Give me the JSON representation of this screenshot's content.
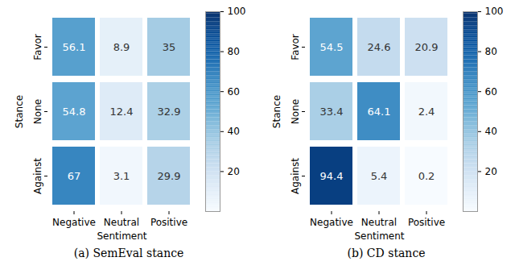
{
  "chart_data": [
    {
      "type": "heatmap",
      "title": "(a) SemEval stance",
      "x_label": "Sentiment",
      "y_label": "Stance",
      "x_categories": [
        "Negative",
        "Neutral",
        "Positive"
      ],
      "y_categories": [
        "Favor",
        "None",
        "Against"
      ],
      "values": [
        [
          56.1,
          8.9,
          35
        ],
        [
          54.8,
          12.4,
          32.9
        ],
        [
          67,
          3.1,
          29.9
        ]
      ],
      "data_labels": true,
      "colorbar": {
        "range": [
          0,
          100
        ],
        "ticks": [
          20,
          40,
          60,
          80,
          100
        ]
      }
    },
    {
      "type": "heatmap",
      "title": "(b) CD stance",
      "x_label": "Sentiment",
      "y_label": "Stance",
      "x_categories": [
        "Negative",
        "Neutral",
        "Positive"
      ],
      "y_categories": [
        "Favor",
        "None",
        "Against"
      ],
      "values": [
        [
          54.5,
          24.6,
          20.9
        ],
        [
          33.4,
          64.1,
          2.4
        ],
        [
          94.4,
          5.4,
          0.2
        ]
      ],
      "data_labels": true,
      "colorbar": {
        "range": [
          0,
          100
        ],
        "ticks": [
          20,
          40,
          60,
          80,
          100
        ]
      }
    }
  ]
}
